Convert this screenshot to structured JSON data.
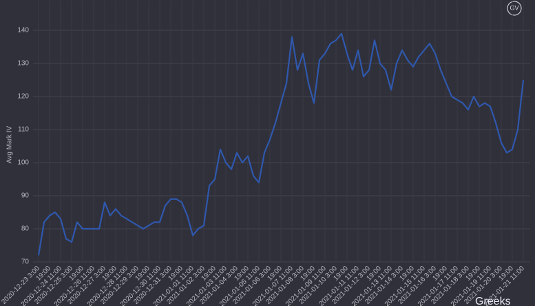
{
  "chart_data": {
    "type": "line",
    "y_label": "Avg Mark IV",
    "logo": "GV",
    "watermark": "Greeks",
    "ylim": [
      70,
      149
    ],
    "yticks": [
      70,
      80,
      90,
      100,
      110,
      120,
      130,
      140
    ],
    "grid": true,
    "categories": [
      "2020-12-23 3:00",
      null,
      "19:00",
      null,
      "2020-12-24 11:00",
      null,
      "2020-12-25 3:00",
      null,
      "19:00",
      null,
      "2020-12-26 11:00",
      null,
      "2020-12-27 3:00",
      null,
      "19:00",
      null,
      "2020-12-28 11:00",
      null,
      "2020-12-29 3:00",
      null,
      "19:00",
      null,
      "2020-12-30 11:00",
      null,
      "2020-12-31 3:00",
      null,
      "19:00",
      null,
      "2021-01-01 11:00",
      null,
      "2021-01-02 3:00",
      null,
      "19:00",
      null,
      "2021-01-03 11:00",
      null,
      "2021-01-04 3:00",
      null,
      "19:00",
      null,
      "2021-01-05 11:00",
      null,
      "2021-01-06 3:00",
      null,
      "19:00",
      null,
      "2021-01-07 11:00",
      null,
      "2021-01-08 3:00",
      null,
      "19:00",
      null,
      "2021-01-09 11:00",
      null,
      "2021-01-10 3:00",
      null,
      "19:00",
      null,
      "2021-01-11 11:00",
      null,
      "2021-01-12 3:00",
      null,
      "19:00",
      null,
      "2021-01-13 11:00",
      null,
      "2021-01-14 3:00",
      null,
      "19:00",
      null,
      "2021-01-15 11:00",
      null,
      "2021-01-16 3:00",
      null,
      "19:00",
      null,
      "2021-01-17 11:00",
      null,
      "2021-01-18 3:00",
      null,
      "19:00",
      null,
      "2021-01-19 11:00",
      null,
      "2021-01-20 3:00",
      null,
      "19:00",
      null,
      "2021-01-21 11:00"
    ],
    "series": [
      {
        "color": "#2f58ad",
        "values": [
          72,
          82,
          84,
          85,
          83,
          77,
          76,
          82,
          80,
          80,
          80,
          80,
          88,
          84,
          86,
          84,
          83,
          82,
          81,
          80,
          81,
          82,
          82,
          87,
          89,
          89,
          88,
          84,
          78,
          80,
          81,
          93,
          95,
          104,
          100,
          98,
          103,
          100,
          102,
          96,
          94,
          103,
          107,
          112,
          118,
          124,
          138,
          128,
          133,
          124,
          118,
          131,
          133,
          136,
          137,
          139,
          133,
          128,
          134,
          126,
          128,
          137,
          130,
          128,
          122,
          130,
          134,
          131,
          129,
          132,
          134,
          136,
          133,
          128,
          124,
          120,
          119,
          118,
          116,
          120,
          117,
          118,
          117,
          112,
          106,
          103,
          104,
          110,
          125
        ]
      }
    ]
  }
}
